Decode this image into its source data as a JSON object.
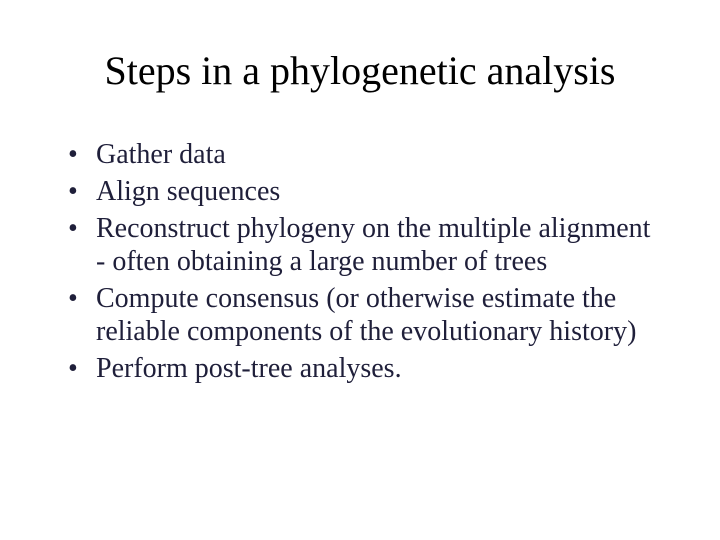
{
  "slide": {
    "title": "Steps in a phylogenetic analysis",
    "title_fontsize": 40,
    "title_color": "#000000",
    "background_color": "#ffffff",
    "body_fontsize": 28,
    "body_color": "#1f1f3a",
    "bullet_marker": "•",
    "font_family": "Times New Roman",
    "bullets": [
      "Gather data",
      "Align sequences",
      "Reconstruct phylogeny on the multiple alignment - often obtaining a large number of trees",
      "Compute consensus (or otherwise estimate the reliable components of the evolutionary history)",
      "Perform post-tree analyses."
    ]
  }
}
